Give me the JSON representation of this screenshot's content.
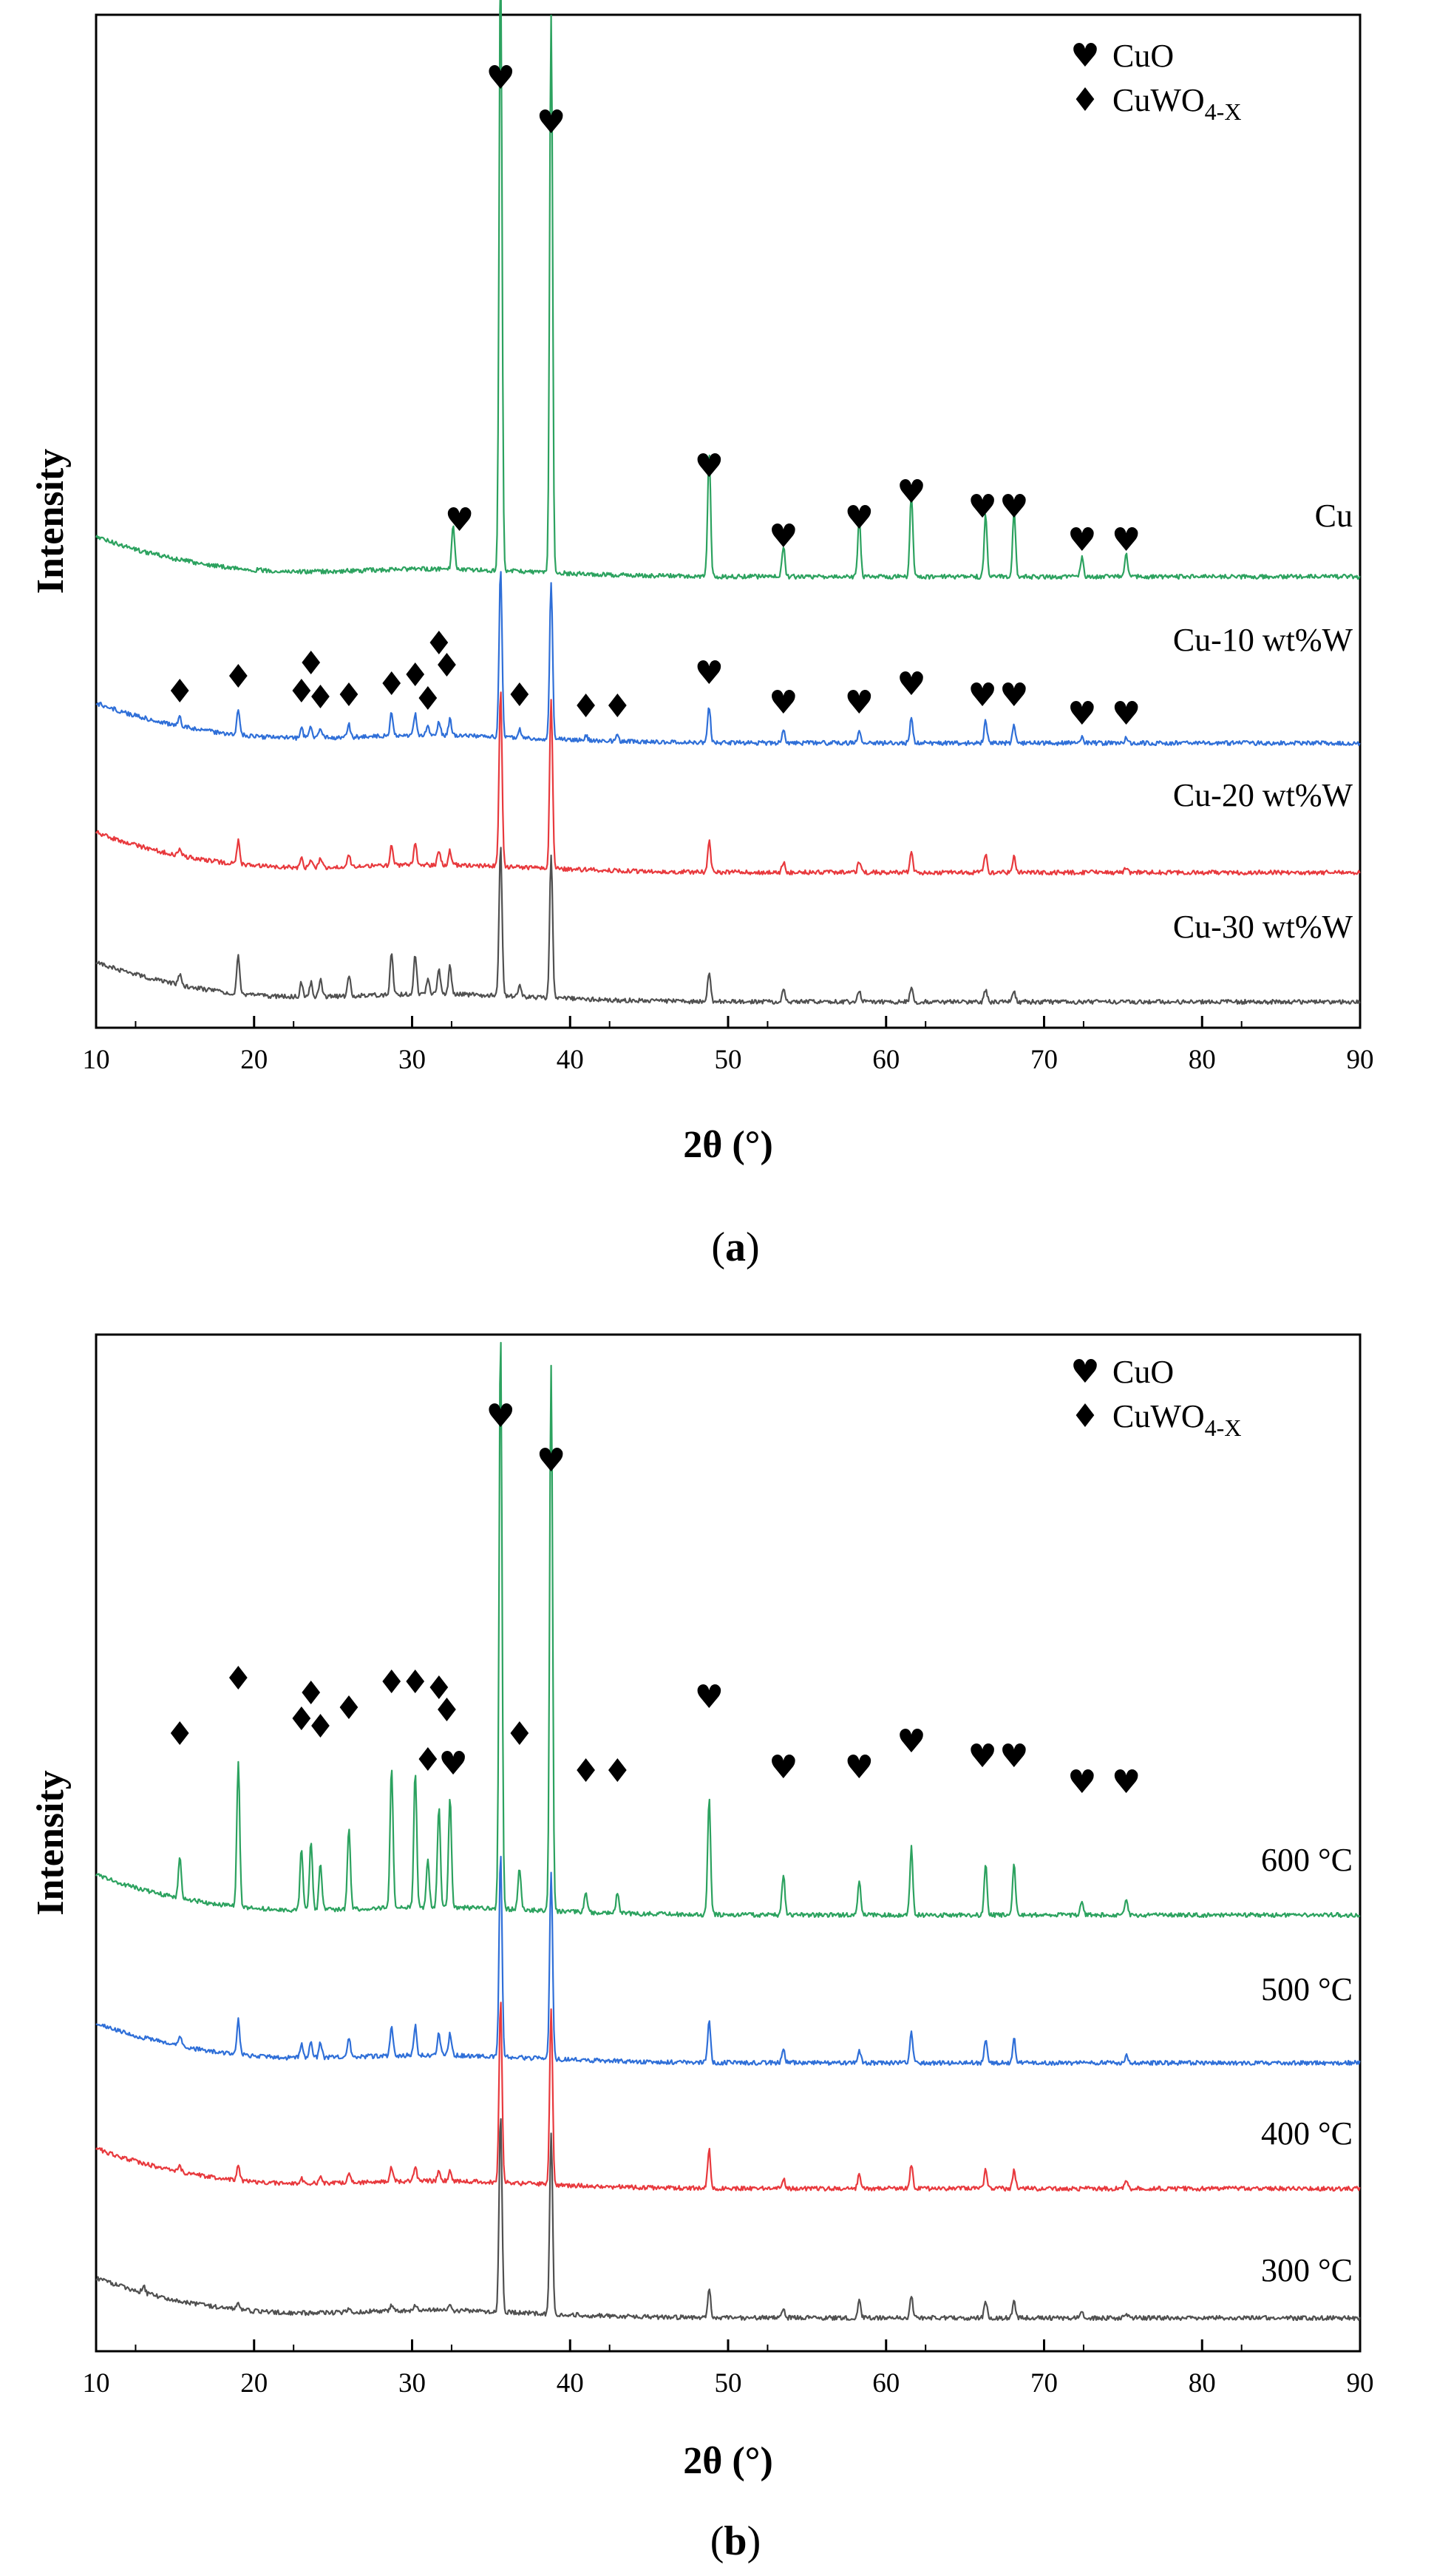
{
  "chart_data": [
    {
      "type": "line",
      "panel_label": "a",
      "xlabel": "2θ (°)",
      "ylabel": "Intensity",
      "xlim": [
        10,
        90
      ],
      "xticks": [
        10,
        20,
        30,
        40,
        50,
        60,
        70,
        80,
        90
      ],
      "legend": {
        "placement": "top-right",
        "entries": [
          {
            "symbol": "♥",
            "label": "CuO",
            "sub": ""
          },
          {
            "symbol": "♦",
            "label": "CuWO",
            "sub": "4-X"
          }
        ]
      },
      "series": [
        {
          "name": "Cu",
          "color": "#2ca25f",
          "peaks": [
            [
              32.6,
              0.12
            ],
            [
              35.6,
              1.6
            ],
            [
              38.8,
              1.45
            ],
            [
              48.8,
              0.32
            ],
            [
              53.5,
              0.08
            ],
            [
              58.3,
              0.15
            ],
            [
              61.6,
              0.22
            ],
            [
              66.3,
              0.16
            ],
            [
              68.1,
              0.17
            ],
            [
              72.4,
              0.05
            ],
            [
              75.2,
              0.06
            ]
          ]
        },
        {
          "name": "Cu-10 wt%W",
          "color": "#2f6fd8",
          "peaks": [
            [
              15.3,
              0.05
            ],
            [
              19.0,
              0.15
            ],
            [
              23.0,
              0.06
            ],
            [
              23.6,
              0.07
            ],
            [
              24.2,
              0.06
            ],
            [
              26.0,
              0.07
            ],
            [
              28.7,
              0.14
            ],
            [
              30.2,
              0.12
            ],
            [
              31.0,
              0.06
            ],
            [
              31.7,
              0.08
            ],
            [
              32.4,
              0.09
            ],
            [
              35.6,
              0.95
            ],
            [
              36.8,
              0.05
            ],
            [
              38.8,
              0.88
            ],
            [
              41.0,
              0.03
            ],
            [
              43.0,
              0.03
            ],
            [
              48.8,
              0.2
            ],
            [
              53.5,
              0.07
            ],
            [
              58.3,
              0.08
            ],
            [
              61.6,
              0.15
            ],
            [
              66.3,
              0.13
            ],
            [
              68.1,
              0.11
            ],
            [
              72.4,
              0.03
            ],
            [
              75.2,
              0.03
            ]
          ]
        },
        {
          "name": "Cu-20 wt%W",
          "color": "#e8393d",
          "peaks": [
            [
              15.3,
              0.04
            ],
            [
              19.0,
              0.13
            ],
            [
              23.0,
              0.05
            ],
            [
              23.6,
              0.05
            ],
            [
              24.2,
              0.05
            ],
            [
              26.0,
              0.06
            ],
            [
              28.7,
              0.12
            ],
            [
              30.2,
              0.12
            ],
            [
              31.7,
              0.08
            ],
            [
              32.4,
              0.08
            ],
            [
              35.6,
              1.0
            ],
            [
              38.8,
              0.95
            ],
            [
              48.8,
              0.18
            ],
            [
              53.5,
              0.06
            ],
            [
              58.3,
              0.06
            ],
            [
              61.6,
              0.12
            ],
            [
              66.3,
              0.1
            ],
            [
              68.1,
              0.1
            ],
            [
              75.2,
              0.03
            ]
          ]
        },
        {
          "name": "Cu-30 wt%W",
          "color": "#505050",
          "peaks": [
            [
              15.3,
              0.06
            ],
            [
              19.0,
              0.21
            ],
            [
              23.0,
              0.08
            ],
            [
              23.6,
              0.08
            ],
            [
              24.2,
              0.1
            ],
            [
              26.0,
              0.12
            ],
            [
              28.7,
              0.24
            ],
            [
              30.2,
              0.22
            ],
            [
              31.0,
              0.08
            ],
            [
              31.7,
              0.15
            ],
            [
              32.4,
              0.16
            ],
            [
              35.6,
              0.85
            ],
            [
              36.8,
              0.06
            ],
            [
              38.8,
              0.8
            ],
            [
              48.8,
              0.17
            ],
            [
              53.5,
              0.07
            ],
            [
              58.3,
              0.06
            ],
            [
              61.6,
              0.08
            ],
            [
              66.3,
              0.07
            ],
            [
              68.1,
              0.06
            ]
          ]
        }
      ],
      "annotations": [
        {
          "symbol": "♥",
          "x": 33.0
        },
        {
          "symbol": "♥",
          "x": 35.6
        },
        {
          "symbol": "♥",
          "x": 38.8
        },
        {
          "symbol": "♥",
          "x": 48.8
        },
        {
          "symbol": "♥",
          "x": 53.5
        },
        {
          "symbol": "♥",
          "x": 58.3
        },
        {
          "symbol": "♥",
          "x": 61.6
        },
        {
          "symbol": "♥",
          "x": 66.1
        },
        {
          "symbol": "♥",
          "x": 68.1
        },
        {
          "symbol": "♥",
          "x": 72.4
        },
        {
          "symbol": "♥",
          "x": 75.2
        },
        {
          "symbol": "♦",
          "x": 15.3
        },
        {
          "symbol": "♦",
          "x": 19.0
        },
        {
          "symbol": "♦",
          "x": 23.0
        },
        {
          "symbol": "♦",
          "x": 23.6
        },
        {
          "symbol": "♦",
          "x": 24.2
        },
        {
          "symbol": "♦",
          "x": 26.0
        },
        {
          "symbol": "♦",
          "x": 28.7
        },
        {
          "symbol": "♦",
          "x": 30.2
        },
        {
          "symbol": "♦",
          "x": 31.0
        },
        {
          "symbol": "♦",
          "x": 31.7
        },
        {
          "symbol": "♦",
          "x": 32.2
        },
        {
          "symbol": "♦",
          "x": 36.8
        },
        {
          "symbol": "♦",
          "x": 41.0
        },
        {
          "symbol": "♦",
          "x": 43.0
        },
        {
          "symbol": "♥",
          "x": 48.8
        },
        {
          "symbol": "♥",
          "x": 53.5
        },
        {
          "symbol": "♥",
          "x": 58.3
        },
        {
          "symbol": "♥",
          "x": 61.6
        },
        {
          "symbol": "♥",
          "x": 66.1
        },
        {
          "symbol": "♥",
          "x": 68.1
        },
        {
          "symbol": "♥",
          "x": 72.4
        },
        {
          "symbol": "♥",
          "x": 75.2
        }
      ]
    },
    {
      "type": "line",
      "panel_label": "b",
      "xlabel": "2θ (°)",
      "ylabel": "Intensity",
      "xlim": [
        10,
        90
      ],
      "xticks": [
        10,
        20,
        30,
        40,
        50,
        60,
        70,
        80,
        90
      ],
      "legend": {
        "placement": "top-right",
        "entries": [
          {
            "symbol": "♥",
            "label": "CuO",
            "sub": ""
          },
          {
            "symbol": "♦",
            "label": "CuWO",
            "sub": "4-X"
          }
        ]
      },
      "series": [
        {
          "name": "600 °C",
          "color": "#2ca25f",
          "peaks": [
            [
              15.3,
              0.12
            ],
            [
              19.0,
              0.42
            ],
            [
              23.0,
              0.18
            ],
            [
              23.6,
              0.2
            ],
            [
              24.2,
              0.14
            ],
            [
              26.0,
              0.24
            ],
            [
              28.7,
              0.42
            ],
            [
              30.2,
              0.4
            ],
            [
              31.0,
              0.14
            ],
            [
              31.7,
              0.3
            ],
            [
              32.4,
              0.32
            ],
            [
              35.6,
              1.7
            ],
            [
              36.8,
              0.12
            ],
            [
              38.8,
              1.6
            ],
            [
              41.0,
              0.06
            ],
            [
              43.0,
              0.06
            ],
            [
              48.8,
              0.34
            ],
            [
              53.5,
              0.12
            ],
            [
              58.3,
              0.1
            ],
            [
              61.6,
              0.2
            ],
            [
              66.3,
              0.15
            ],
            [
              68.1,
              0.15
            ],
            [
              72.4,
              0.04
            ],
            [
              75.2,
              0.05
            ]
          ]
        },
        {
          "name": "500 °C",
          "color": "#2f6fd8",
          "peaks": [
            [
              15.3,
              0.06
            ],
            [
              19.0,
              0.19
            ],
            [
              23.0,
              0.08
            ],
            [
              23.6,
              0.09
            ],
            [
              24.2,
              0.08
            ],
            [
              26.0,
              0.11
            ],
            [
              28.7,
              0.17
            ],
            [
              30.2,
              0.16
            ],
            [
              31.7,
              0.12
            ],
            [
              32.4,
              0.12
            ],
            [
              35.6,
              1.1
            ],
            [
              38.8,
              1.0
            ],
            [
              48.8,
              0.23
            ],
            [
              53.5,
              0.07
            ],
            [
              58.3,
              0.07
            ],
            [
              61.6,
              0.16
            ],
            [
              66.3,
              0.13
            ],
            [
              68.1,
              0.13
            ],
            [
              75.2,
              0.04
            ]
          ]
        },
        {
          "name": "400 °C",
          "color": "#e8393d",
          "peaks": [
            [
              15.3,
              0.03
            ],
            [
              19.0,
              0.08
            ],
            [
              23.0,
              0.03
            ],
            [
              24.2,
              0.04
            ],
            [
              26.0,
              0.05
            ],
            [
              28.7,
              0.08
            ],
            [
              30.2,
              0.08
            ],
            [
              31.7,
              0.06
            ],
            [
              32.4,
              0.06
            ],
            [
              35.6,
              1.05
            ],
            [
              38.8,
              1.0
            ],
            [
              48.8,
              0.22
            ],
            [
              53.5,
              0.06
            ],
            [
              58.3,
              0.08
            ],
            [
              61.6,
              0.14
            ],
            [
              66.3,
              0.11
            ],
            [
              68.1,
              0.11
            ],
            [
              75.2,
              0.04
            ]
          ]
        },
        {
          "name": "300 °C",
          "color": "#505050",
          "peaks": [
            [
              13.0,
              0.04
            ],
            [
              19.0,
              0.04
            ],
            [
              26.0,
              0.02
            ],
            [
              28.7,
              0.03
            ],
            [
              30.2,
              0.03
            ],
            [
              32.4,
              0.03
            ],
            [
              35.6,
              1.15
            ],
            [
              38.8,
              1.05
            ],
            [
              48.8,
              0.17
            ],
            [
              53.5,
              0.05
            ],
            [
              58.3,
              0.1
            ],
            [
              61.6,
              0.13
            ],
            [
              66.3,
              0.1
            ],
            [
              68.1,
              0.1
            ],
            [
              72.4,
              0.03
            ],
            [
              75.2,
              0.03
            ]
          ]
        }
      ],
      "annotations": [
        {
          "symbol": "♥",
          "x": 35.6
        },
        {
          "symbol": "♥",
          "x": 38.8
        },
        {
          "symbol": "♦",
          "x": 15.3
        },
        {
          "symbol": "♦",
          "x": 19.0
        },
        {
          "symbol": "♦",
          "x": 23.0
        },
        {
          "symbol": "♦",
          "x": 23.6
        },
        {
          "symbol": "♦",
          "x": 24.2
        },
        {
          "symbol": "♦",
          "x": 26.0
        },
        {
          "symbol": "♦",
          "x": 28.7
        },
        {
          "symbol": "♦",
          "x": 30.2
        },
        {
          "symbol": "♦",
          "x": 31.0
        },
        {
          "symbol": "♦",
          "x": 31.7
        },
        {
          "symbol": "♦",
          "x": 32.2
        },
        {
          "symbol": "♥",
          "x": 32.6
        },
        {
          "symbol": "♦",
          "x": 36.8
        },
        {
          "symbol": "♦",
          "x": 41.0
        },
        {
          "symbol": "♦",
          "x": 43.0
        },
        {
          "symbol": "♥",
          "x": 48.8
        },
        {
          "symbol": "♥",
          "x": 53.5
        },
        {
          "symbol": "♥",
          "x": 58.3
        },
        {
          "symbol": "♥",
          "x": 61.6
        },
        {
          "symbol": "♥",
          "x": 66.1
        },
        {
          "symbol": "♥",
          "x": 68.1
        },
        {
          "symbol": "♥",
          "x": 72.4
        },
        {
          "symbol": "♥",
          "x": 75.2
        }
      ]
    }
  ]
}
